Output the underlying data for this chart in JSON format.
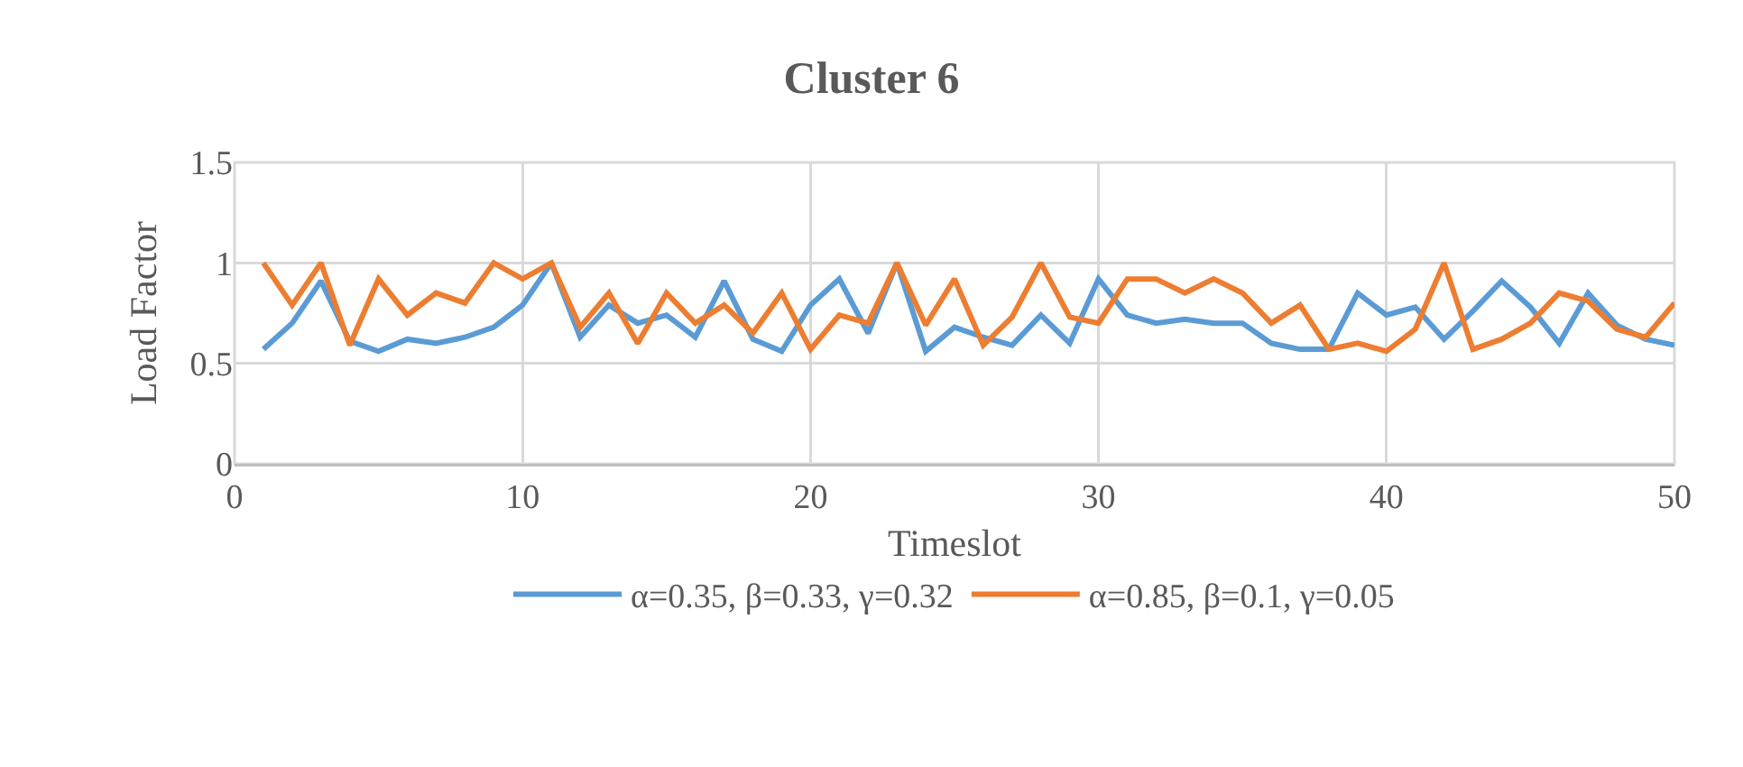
{
  "chart_data": {
    "type": "line",
    "title": "Cluster 6",
    "xlabel": "Timeslot",
    "ylabel": "Load Factor",
    "x": [
      1,
      2,
      3,
      4,
      5,
      6,
      7,
      8,
      9,
      10,
      11,
      12,
      13,
      14,
      15,
      16,
      17,
      18,
      19,
      20,
      21,
      22,
      23,
      24,
      25,
      26,
      27,
      28,
      29,
      30,
      31,
      32,
      33,
      34,
      35,
      36,
      37,
      38,
      39,
      40,
      41,
      42,
      43,
      44,
      45,
      46,
      47,
      48,
      49,
      50
    ],
    "series": [
      {
        "name": "α=0.35, β=0.33, γ=0.32",
        "color": "#5b9bd5",
        "values": [
          0.57,
          0.7,
          0.91,
          0.61,
          0.56,
          0.62,
          0.6,
          0.63,
          0.68,
          0.79,
          1,
          0.63,
          0.79,
          0.7,
          0.74,
          0.63,
          0.91,
          0.62,
          0.56,
          0.79,
          0.92,
          0.65,
          1,
          0.56,
          0.68,
          0.63,
          0.59,
          0.74,
          0.6,
          0.92,
          0.74,
          0.7,
          0.72,
          0.7,
          0.7,
          0.6,
          0.57,
          0.57,
          0.85,
          0.74,
          0.78,
          0.62,
          0.76,
          0.91,
          0.78,
          0.6,
          0.85,
          0.69,
          0.62,
          0.59
        ]
      },
      {
        "name": "α=0.85, β=0.1, γ=0.05",
        "color": "#ed7d31",
        "values": [
          1,
          0.79,
          1,
          0.59,
          0.92,
          0.74,
          0.85,
          0.8,
          1,
          0.92,
          1,
          0.68,
          0.85,
          0.6,
          0.85,
          0.7,
          0.79,
          0.65,
          0.85,
          0.57,
          0.74,
          0.7,
          1,
          0.69,
          0.92,
          0.59,
          0.73,
          1,
          0.73,
          0.7,
          0.92,
          0.92,
          0.85,
          0.92,
          0.85,
          0.7,
          0.79,
          0.57,
          0.6,
          0.56,
          0.67,
          1,
          0.57,
          0.62,
          0.7,
          0.85,
          0.81,
          0.67,
          0.63,
          0.8
        ]
      }
    ],
    "xlim": [
      0,
      50
    ],
    "xticks": [
      0,
      10,
      20,
      30,
      40,
      50
    ],
    "ylim": [
      0,
      1.5
    ],
    "yticks": [
      0,
      0.5,
      1,
      1.5
    ],
    "grid": true,
    "legend": "bottom",
    "marker": "none",
    "line_style": "solid"
  }
}
